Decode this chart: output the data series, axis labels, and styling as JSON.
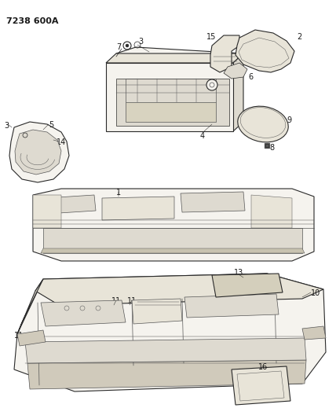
{
  "header": "7238 600A",
  "background_color": "#ffffff",
  "text_color": "#1a1a1a",
  "figsize": [
    4.28,
    5.33
  ],
  "dpi": 100,
  "lw_main": 0.8,
  "lw_detail": 0.5,
  "lw_light": 0.35,
  "edge_color": "#2a2a2a",
  "detail_color": "#555555",
  "light_color": "#888888",
  "fill_main": "#f5f3ee",
  "fill_dark": "#dedad0",
  "fill_mid": "#e8e4d8"
}
